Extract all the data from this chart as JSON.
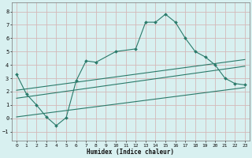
{
  "title": "",
  "xlabel": "Humidex (Indice chaleur)",
  "bg_color": "#d8f0f0",
  "grid_color": "#d4b8b8",
  "line_color": "#2a7a6a",
  "xlim": [
    -0.5,
    23.5
  ],
  "ylim": [
    -1.7,
    8.7
  ],
  "xticks": [
    0,
    1,
    2,
    3,
    4,
    5,
    6,
    7,
    8,
    9,
    10,
    11,
    12,
    13,
    14,
    15,
    16,
    17,
    18,
    19,
    20,
    21,
    22,
    23
  ],
  "yticks": [
    -1,
    0,
    1,
    2,
    3,
    4,
    5,
    6,
    7,
    8
  ],
  "main_x": [
    0,
    1,
    2,
    3,
    4,
    5,
    6,
    7,
    8,
    10,
    12,
    13,
    14,
    15,
    16,
    17,
    18,
    19,
    20,
    21,
    22,
    23
  ],
  "main_y": [
    3.3,
    1.8,
    1.0,
    0.1,
    -0.55,
    0.05,
    2.8,
    4.3,
    4.2,
    5.0,
    5.2,
    7.2,
    7.2,
    7.8,
    7.2,
    6.0,
    5.0,
    4.6,
    4.0,
    3.0,
    2.6,
    2.5
  ],
  "line1_x": [
    0,
    23
  ],
  "line1_y": [
    1.5,
    3.9
  ],
  "line2_x": [
    0,
    23
  ],
  "line2_y": [
    0.1,
    2.3
  ],
  "line3_x": [
    0,
    23
  ],
  "line3_y": [
    2.1,
    4.4
  ]
}
